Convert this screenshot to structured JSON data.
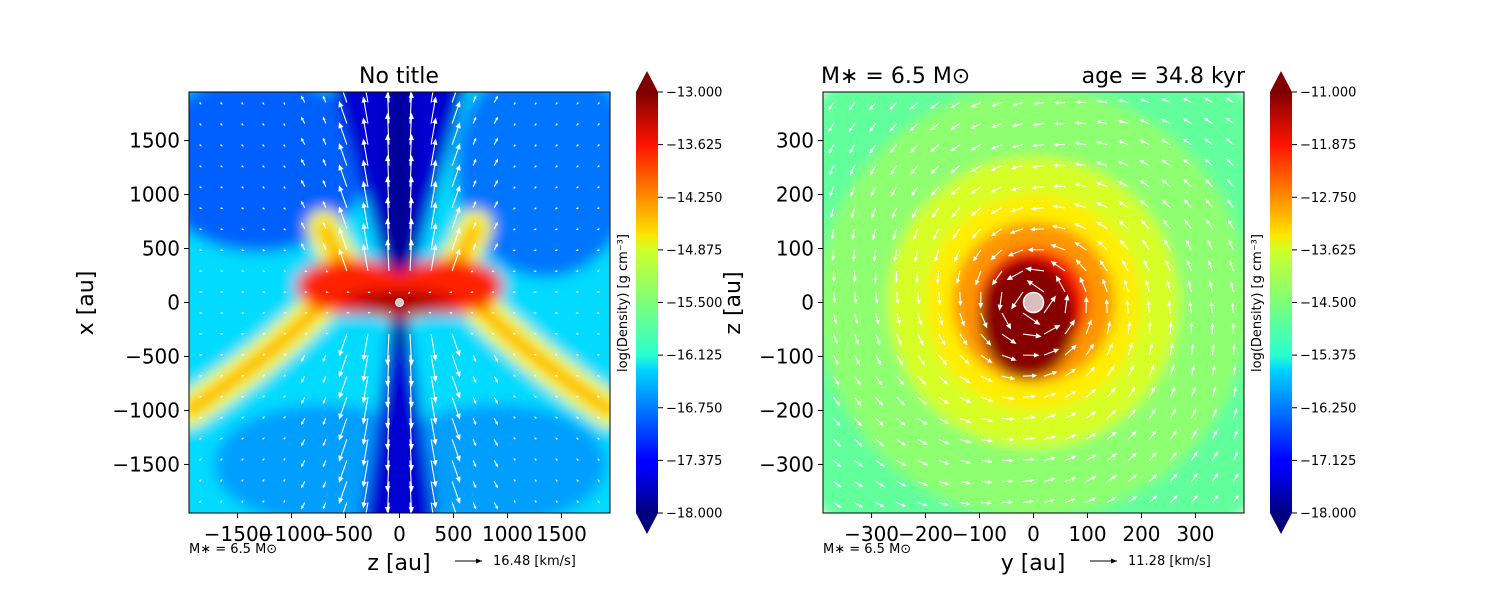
{
  "chart_data": [
    {
      "type": "heatmap",
      "title": "No title",
      "xlabel": "z [au]",
      "ylabel": "x [au]",
      "xlim": [
        -1950,
        1950
      ],
      "ylim": [
        -1950,
        1950
      ],
      "xticks": [
        -1500,
        -1000,
        -500,
        0,
        500,
        1000,
        1500
      ],
      "xtick_labels": [
        "−1500",
        "−1000",
        "−500",
        "0",
        "500",
        "1000",
        "1500"
      ],
      "yticks": [
        -1500,
        -1000,
        -500,
        0,
        500,
        1000,
        1500
      ],
      "ytick_labels": [
        "−1500",
        "−1000",
        "−500",
        "0",
        "500",
        "1000",
        "1500"
      ],
      "colorbar": {
        "label": "log(Density) [g cm⁻³]",
        "range": [
          -18.0,
          -13.0
        ],
        "ticks": [
          -13.0,
          -13.625,
          -14.25,
          -14.875,
          -15.5,
          -16.125,
          -16.75,
          -17.375,
          -18.0
        ],
        "tick_labels": [
          "−13.000",
          "−13.625",
          "−14.250",
          "−14.875",
          "−15.500",
          "−16.125",
          "−16.750",
          "−17.375",
          "−18.000"
        ]
      },
      "background_log_density": -16.3,
      "features": [
        {
          "name": "polar outflow cavity",
          "log_density": -17.6
        },
        {
          "name": "central disk",
          "log_density": -13.1
        },
        {
          "name": "outflow cavity walls",
          "log_density": -14.9
        }
      ],
      "mass_note": "M∗ = 6.5 M⊙",
      "velocity_key": "16.48 [km/s]"
    },
    {
      "type": "heatmap",
      "title_left": "M∗ = 6.5 M⊙",
      "title_right": "age = 34.8 kyr",
      "xlabel": "y [au]",
      "ylabel": "z [au]",
      "xlim": [
        -390,
        390
      ],
      "ylim": [
        -390,
        390
      ],
      "xticks": [
        -300,
        -200,
        -100,
        0,
        100,
        200,
        300
      ],
      "xtick_labels": [
        "−300",
        "−200",
        "−100",
        "0",
        "100",
        "200",
        "300"
      ],
      "yticks": [
        -300,
        -200,
        -100,
        0,
        100,
        200,
        300
      ],
      "ytick_labels": [
        "−300",
        "−200",
        "−100",
        "0",
        "100",
        "200",
        "300"
      ],
      "colorbar": {
        "label": "log(Density) [g cm⁻³]",
        "range": [
          -18.0,
          -11.0
        ],
        "ticks": [
          -11.0,
          -11.875,
          -12.75,
          -13.625,
          -14.5,
          -15.375,
          -16.25,
          -17.125,
          -18.0
        ],
        "tick_labels": [
          "−11.000",
          "−11.875",
          "−12.750",
          "−13.625",
          "−14.500",
          "−15.375",
          "−16.250",
          "−17.125",
          "−18.000"
        ]
      },
      "radial_profile": [
        {
          "r": 0,
          "log_density": -11.0
        },
        {
          "r": 60,
          "log_density": -11.2
        },
        {
          "r": 100,
          "log_density": -12.0
        },
        {
          "r": 150,
          "log_density": -12.9
        },
        {
          "r": 200,
          "log_density": -13.5
        },
        {
          "r": 270,
          "log_density": -13.9
        },
        {
          "r": 400,
          "log_density": -14.4
        },
        {
          "r": 550,
          "log_density": -14.7
        }
      ],
      "mass_note": "M∗ = 6.5 M⊙",
      "velocity_key": "11.28 [km/s]"
    }
  ]
}
